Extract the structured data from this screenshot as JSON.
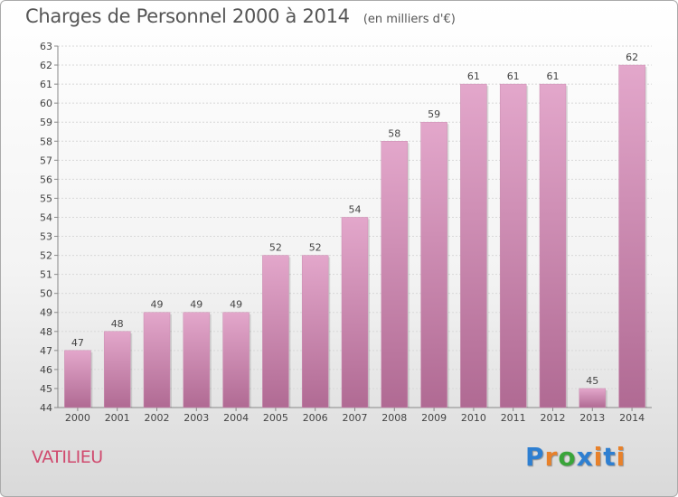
{
  "chart_data": {
    "type": "bar",
    "title": "Charges de Personnel 2000 à 2014",
    "subtitle": "(en milliers d'€)",
    "categories": [
      "2000",
      "2001",
      "2002",
      "2003",
      "2004",
      "2005",
      "2006",
      "2007",
      "2008",
      "2009",
      "2010",
      "2011",
      "2012",
      "2013",
      "2014"
    ],
    "values": [
      47,
      48,
      49,
      49,
      49,
      52,
      52,
      54,
      58,
      59,
      61,
      61,
      61,
      45,
      62
    ],
    "ylim": [
      44,
      63
    ],
    "yticks": [
      44,
      45,
      46,
      47,
      48,
      49,
      50,
      51,
      52,
      53,
      54,
      55,
      56,
      57,
      58,
      59,
      60,
      61,
      62,
      63
    ],
    "grid": true,
    "bar_color_top": "#e3a7cb",
    "bar_color_bottom": "#b06a93"
  },
  "location": "VATILIEU",
  "logo": {
    "text": "Proxiti",
    "letters": [
      "P",
      "r",
      "o",
      "x",
      "i",
      "t",
      "i"
    ],
    "colors": [
      "#2e7fd1",
      "#e8812a",
      "#3aa53a",
      "#2e7fd1",
      "#e8812a",
      "#2e7fd1",
      "#e8812a"
    ]
  }
}
